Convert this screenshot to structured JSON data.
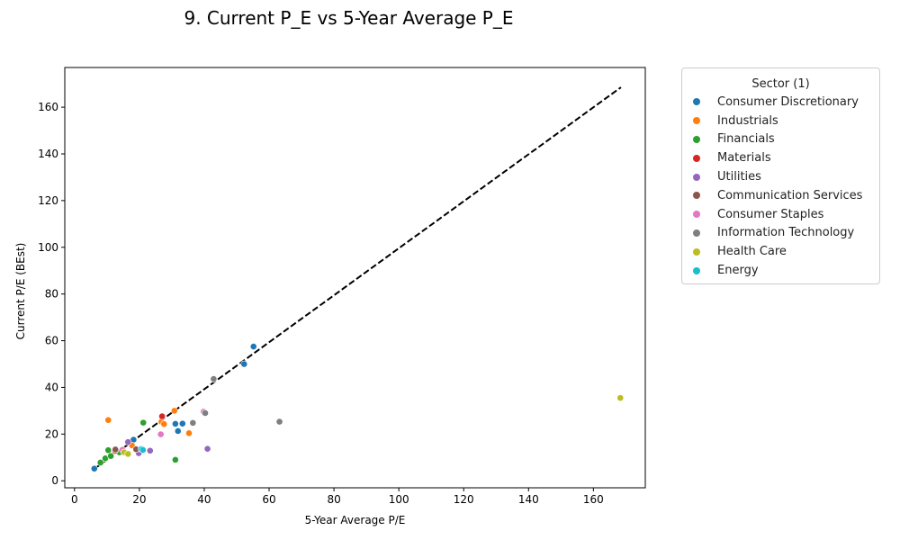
{
  "chart_data": {
    "type": "scatter",
    "title": "9. Current P_E vs 5-Year Average P_E",
    "xlabel": "5-Year Average P/E",
    "ylabel": "Current P/E (BEst)",
    "xlim": [
      -3,
      176
    ],
    "ylim": [
      -3,
      177
    ],
    "xticks": [
      0,
      20,
      40,
      60,
      80,
      100,
      120,
      140,
      160
    ],
    "yticks": [
      0,
      20,
      40,
      60,
      80,
      100,
      120,
      140,
      160
    ],
    "reference_line": {
      "style": "dashed",
      "color": "#000000",
      "from": [
        6,
        5
      ],
      "to": [
        168.5,
        168.5
      ]
    },
    "legend": {
      "title": "Sector (1)",
      "position": "outside-right"
    },
    "series": [
      {
        "name": "Consumer Discretionary",
        "color": "#1f77b4",
        "points": [
          [
            6.1,
            5.2
          ],
          [
            18.2,
            17.6
          ],
          [
            31.1,
            24.4
          ],
          [
            31.9,
            21.3
          ],
          [
            33.3,
            24.5
          ],
          [
            52.3,
            50.0
          ],
          [
            55.2,
            57.5
          ]
        ]
      },
      {
        "name": "Industrials",
        "color": "#ff7f0e",
        "points": [
          [
            10.4,
            26.0
          ],
          [
            17.7,
            15.2
          ],
          [
            26.8,
            25.3
          ],
          [
            27.6,
            24.3
          ],
          [
            30.8,
            30.0
          ],
          [
            35.3,
            20.4
          ]
        ]
      },
      {
        "name": "Financials",
        "color": "#2ca02c",
        "points": [
          [
            8.0,
            7.8
          ],
          [
            9.5,
            9.6
          ],
          [
            10.4,
            13.1
          ],
          [
            11.2,
            10.6
          ],
          [
            13.8,
            12.2
          ],
          [
            21.2,
            24.9
          ],
          [
            31.1,
            9.0
          ]
        ]
      },
      {
        "name": "Materials",
        "color": "#d62728",
        "points": [
          [
            12.5,
            12.8
          ],
          [
            27.0,
            27.6
          ]
        ]
      },
      {
        "name": "Utilities",
        "color": "#9467bd",
        "points": [
          [
            16.5,
            16.6
          ],
          [
            19.8,
            11.8
          ],
          [
            23.3,
            12.9
          ],
          [
            41.0,
            13.7
          ]
        ]
      },
      {
        "name": "Communication Services",
        "color": "#8c564b",
        "points": [
          [
            12.6,
            13.4
          ],
          [
            19.0,
            13.5
          ]
        ]
      },
      {
        "name": "Consumer Staples",
        "color": "#e377c2",
        "points": [
          [
            14.8,
            13.3
          ],
          [
            26.6,
            19.9
          ],
          [
            39.8,
            29.6
          ]
        ]
      },
      {
        "name": "Information Technology",
        "color": "#7f7f7f",
        "points": [
          [
            36.5,
            24.8
          ],
          [
            40.3,
            29.0
          ],
          [
            42.9,
            43.6
          ],
          [
            63.2,
            25.3
          ]
        ]
      },
      {
        "name": "Health Care",
        "color": "#bcbd22",
        "points": [
          [
            15.3,
            12.2
          ],
          [
            16.5,
            11.5
          ],
          [
            168.3,
            35.5
          ]
        ]
      },
      {
        "name": "Energy",
        "color": "#17becf",
        "points": [
          [
            20.6,
            13.6
          ],
          [
            21.1,
            13.2
          ]
        ]
      }
    ]
  }
}
